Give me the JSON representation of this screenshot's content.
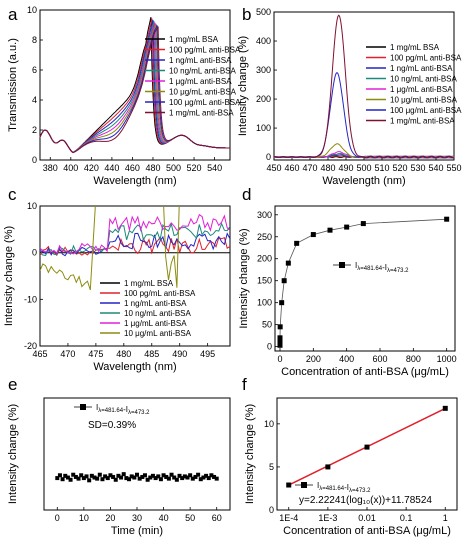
{
  "colors": {
    "black": "#000000",
    "red": "#e0202a",
    "blue": "#2424c8",
    "teal": "#1a8a7a",
    "magenta": "#e020d8",
    "olive": "#8c8c10",
    "maroon": "#801030"
  },
  "chart_data": [
    {
      "panel": "a",
      "type": "line",
      "xlabel": "Wavelength (nm)",
      "ylabel": "Transmission (a.u.)",
      "xlim": [
        370,
        555
      ],
      "ylim": [
        0,
        10
      ],
      "xticks": [
        380,
        400,
        420,
        440,
        460,
        480,
        500,
        520,
        540
      ],
      "yticks": [
        0,
        2,
        4,
        6,
        8,
        10
      ],
      "legend_position": "top-right",
      "series": [
        {
          "name": "1 mg/mL BSA",
          "color": "#000000",
          "peak": 9.5,
          "peak_x": 478
        },
        {
          "name": "100 pg/mL anti-BSA",
          "color": "#e0202a",
          "peak": 9.4,
          "peak_x": 479
        },
        {
          "name": "1 ng/mL anti-BSA",
          "color": "#2424c8",
          "peak": 9.3,
          "peak_x": 480
        },
        {
          "name": "10 ng/mL anti-BSA",
          "color": "#1a8a7a",
          "peak": 9.2,
          "peak_x": 481
        },
        {
          "name": "1 μg/mL anti-BSA",
          "color": "#e020d8",
          "peak": 9.1,
          "peak_x": 482
        },
        {
          "name": "10 μg/mL anti-BSA",
          "color": "#8c8c10",
          "peak": 9.0,
          "peak_x": 483
        },
        {
          "name": "100 μg/mL anti-BSA",
          "color": "#2424c8",
          "peak": 8.9,
          "peak_x": 484
        },
        {
          "name": "1 mg/mL anti-BSA",
          "color": "#801030",
          "peak": 8.8,
          "peak_x": 485
        }
      ]
    },
    {
      "panel": "b",
      "type": "line",
      "xlabel": "Wavelength (nm)",
      "ylabel": "Intensity change (%)",
      "xlim": [
        450,
        550
      ],
      "ylim": [
        -10,
        500
      ],
      "xticks": [
        450,
        460,
        470,
        480,
        490,
        500,
        510,
        520,
        530,
        540,
        550
      ],
      "yticks": [
        0,
        100,
        200,
        300,
        400,
        500
      ],
      "legend_position": "top-right",
      "series": [
        {
          "name": "1 mg/mL BSA",
          "color": "#000000",
          "peak": 0,
          "peak_x": 486
        },
        {
          "name": "100 pg/mL anti-BSA",
          "color": "#e0202a",
          "peak": 4,
          "peak_x": 486
        },
        {
          "name": "1 ng/mL anti-BSA",
          "color": "#2424c8",
          "peak": 8,
          "peak_x": 486
        },
        {
          "name": "10 ng/mL anti-BSA",
          "color": "#1a8a7a",
          "peak": 12,
          "peak_x": 486
        },
        {
          "name": "1 μg/mL anti-BSA",
          "color": "#e020d8",
          "peak": 18,
          "peak_x": 486
        },
        {
          "name": "10 μg/mL anti-BSA",
          "color": "#8c8c10",
          "peak": 45,
          "peak_x": 485
        },
        {
          "name": "100 μg/mL anti-BSA",
          "color": "#2424c8",
          "peak": 290,
          "peak_x": 485
        },
        {
          "name": "1 mg/mL anti-BSA",
          "color": "#801030",
          "peak": 490,
          "peak_x": 486
        }
      ]
    },
    {
      "panel": "c",
      "type": "line",
      "xlabel": "Wavelength (nm)",
      "ylabel": "Intensity change (%)",
      "xlim": [
        465,
        499
      ],
      "ylim": [
        -20,
        10
      ],
      "xticks": [
        465,
        470,
        475,
        480,
        485,
        490,
        495
      ],
      "yticks": [
        -20,
        -10,
        0,
        10
      ],
      "legend_position": "lower-middle",
      "series": [
        {
          "name": "1 mg/mL BSA",
          "color": "#000000",
          "level": 0
        },
        {
          "name": "100 pg/mL anti-BSA",
          "color": "#e0202a",
          "level": 1.5
        },
        {
          "name": "1 ng/mL anti-BSA",
          "color": "#2424c8",
          "level": 2.5
        },
        {
          "name": "10 ng/mL anti-BSA",
          "color": "#1a8a7a",
          "level": 4.5
        },
        {
          "name": "1 μg/mL anti-BSA",
          "color": "#e020d8",
          "level": 6.5
        },
        {
          "name": "10 μg/mL anti-BSA",
          "color": "#8c8c10",
          "level": 0
        }
      ]
    },
    {
      "panel": "d",
      "type": "scatter",
      "xlabel": "Concentration of anti-BSA (μg/mL)",
      "ylabel": "Intensity change (%)",
      "xlim": [
        -30,
        1050
      ],
      "ylim": [
        -10,
        320
      ],
      "xticks": [
        0,
        200,
        400,
        600,
        800,
        1000
      ],
      "yticks": [
        0,
        50,
        100,
        150,
        200,
        250,
        300
      ],
      "legend": {
        "prefix": "I",
        "sub1": "λ=481.64",
        "mid": "-I",
        "sub2": "λ=473.2"
      },
      "x": [
        0,
        0.0001,
        0.001,
        0.01,
        1,
        10,
        25,
        50,
        100,
        200,
        300,
        400,
        500,
        1000
      ],
      "y": [
        3,
        8,
        14,
        20,
        45,
        100,
        150,
        190,
        235,
        255,
        265,
        272,
        280,
        290
      ]
    },
    {
      "panel": "e",
      "type": "scatter",
      "xlabel": "Time (min)",
      "ylabel": "Intensity change (%)",
      "xlim": [
        -5,
        65
      ],
      "ylim": [
        -6,
        14
      ],
      "xticks": [
        0,
        10,
        20,
        30,
        40,
        50,
        60
      ],
      "legend": {
        "prefix": "I",
        "sub1": "λ=481.64",
        "mid": "-I",
        "sub2": "λ=473.2"
      },
      "annotation": "SD=0.39%",
      "x": [
        0,
        1,
        2,
        3,
        4,
        5,
        6,
        7,
        8,
        9,
        10,
        11,
        12,
        13,
        14,
        15,
        16,
        17,
        18,
        19,
        20,
        21,
        22,
        23,
        24,
        25,
        26,
        27,
        28,
        29,
        30,
        31,
        32,
        33,
        34,
        35,
        36,
        37,
        38,
        39,
        40,
        41,
        42,
        43,
        44,
        45,
        46,
        47,
        48,
        49,
        50,
        51,
        52,
        53,
        54,
        55,
        56,
        57,
        58,
        59,
        60
      ],
      "y": [
        -0.3,
        0.2,
        -0.5,
        0.1,
        -0.2,
        -0.6,
        0.3,
        -0.1,
        -0.4,
        0.2,
        -0.3,
        0.0,
        -0.7,
        0.1,
        -0.2,
        -0.4,
        0.3,
        -0.5,
        0.0,
        -0.3,
        0.2,
        -0.1,
        -0.6,
        0.1,
        -0.2,
        0.4,
        -0.3,
        -0.5,
        0.0,
        -0.2,
        0.3,
        -0.4,
        -0.1,
        0.2,
        -0.6,
        -0.2,
        0.1,
        -0.3,
        0.0,
        -0.5,
        0.2,
        -0.1,
        -0.4,
        0.3,
        -0.2,
        -0.6,
        0.1,
        -0.3,
        0.0,
        -0.2,
        0.2,
        -0.4,
        -0.1,
        0.3,
        -0.5,
        -0.2,
        0.1,
        -0.3,
        0.2,
        -0.1,
        -0.4
      ]
    },
    {
      "panel": "f",
      "type": "scatter",
      "xlabel": "Concentration of anti-BSA (μg/mL)",
      "ylabel": "Intensity change (%)",
      "xscale": "log",
      "xlim_log10": [
        -4.3,
        0.3
      ],
      "ylim": [
        0,
        13
      ],
      "xtick_labels": [
        "1E-4",
        "1E-3",
        "0.01",
        "0.1",
        "1"
      ],
      "yticks": [
        0,
        5,
        10
      ],
      "legend": {
        "prefix": "I",
        "sub1": "λ=481.64",
        "mid": "-I",
        "sub2": "λ=473.2"
      },
      "fit_equation": "y=2.22241(log₁₀(x))+11.78524",
      "x": [
        0.0001,
        0.001,
        0.01,
        1
      ],
      "y": [
        2.9,
        5.0,
        7.3,
        11.8
      ],
      "fit": {
        "slope": 2.22241,
        "intercept": 11.78524,
        "color": "#e0202a"
      }
    }
  ],
  "panel_labels": [
    "a",
    "b",
    "c",
    "d",
    "e",
    "f"
  ]
}
